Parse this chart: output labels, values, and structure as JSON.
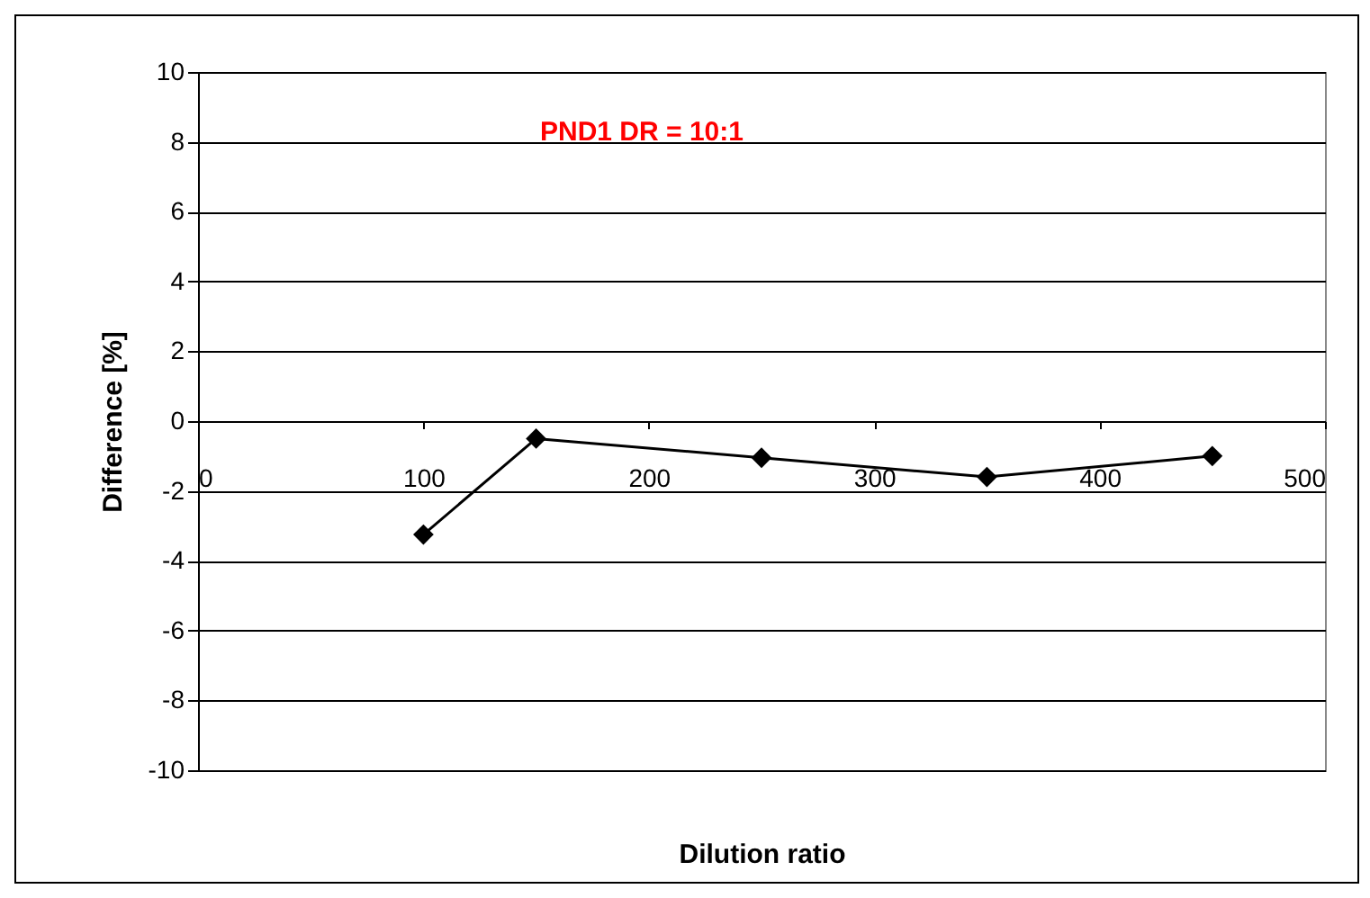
{
  "chart_data": {
    "type": "line",
    "xlabel": "Dilution ratio",
    "ylabel": "Difference [%]",
    "annotations": [
      "PND1 DR = 10:1"
    ],
    "x": [
      100,
      150,
      250,
      350,
      450
    ],
    "series": [
      {
        "color": "#000000",
        "values": [
          -3.25,
          -0.5,
          -1.05,
          -1.6,
          -1.0
        ]
      }
    ],
    "xlim": [
      0,
      500
    ],
    "xticks": [
      0,
      100,
      200,
      300,
      400,
      500
    ],
    "ylim": [
      -10,
      10
    ],
    "yticks": [
      -10,
      -8,
      -6,
      -4,
      -2,
      0,
      2,
      4,
      6,
      8,
      10
    ],
    "grid": "y",
    "marker": "diamond",
    "line_style": "solid"
  }
}
